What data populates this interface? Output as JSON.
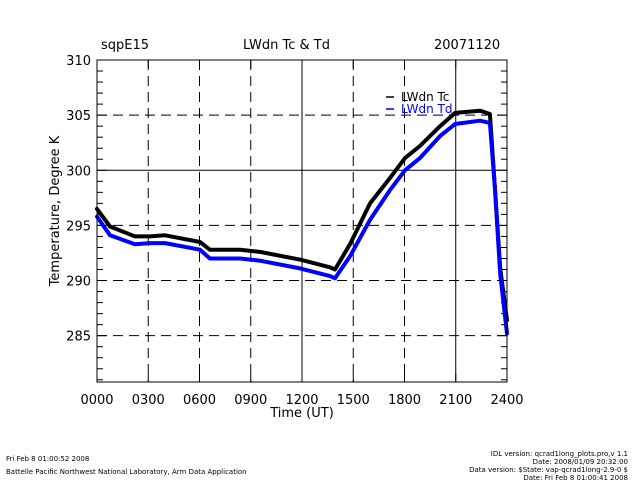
{
  "header": {
    "site": "sqpE15",
    "title": "LWdn Tc & Td",
    "date": "20071120"
  },
  "chart_data": {
    "type": "line",
    "title": "LWdn Tc & Td",
    "xlabel": "Time (UT)",
    "ylabel": "Temperature, Degree K",
    "xlim": [
      0,
      24
    ],
    "ylim": [
      280.8,
      310
    ],
    "x_ticks": [
      0,
      3,
      6,
      9,
      12,
      15,
      18,
      21,
      24
    ],
    "x_tick_labels": [
      "0000",
      "0300",
      "0600",
      "0900",
      "1200",
      "1500",
      "1800",
      "2100",
      "2400"
    ],
    "y_ticks": [
      285,
      290,
      295,
      300,
      305,
      310
    ],
    "y_tick_labels": [
      "285",
      "290",
      "295",
      "300",
      "305",
      "310"
    ],
    "grid": true,
    "legend": "top-right",
    "series": [
      {
        "name": "LWdn Tc",
        "color": "#000000",
        "x": [
          0,
          0.76,
          2.22,
          3.1,
          3.98,
          6.03,
          6.61,
          8.37,
          9.54,
          11.88,
          13.64,
          13.93,
          14.81,
          15.98,
          17.15,
          18.03,
          18.9,
          20.08,
          20.96,
          22.42,
          23.0,
          23.3,
          23.6,
          24
        ],
        "values": [
          296.5,
          294.9,
          294.0,
          294.0,
          294.1,
          293.5,
          292.8,
          292.8,
          292.6,
          291.9,
          291.2,
          291.0,
          293.3,
          297.0,
          299.3,
          301.1,
          302.2,
          304.0,
          305.2,
          305.4,
          305.1,
          298.3,
          291.1,
          286.4
        ]
      },
      {
        "name": "LWdn Td",
        "color": "#0000ff",
        "x": [
          0,
          0.76,
          2.22,
          3.1,
          3.98,
          6.03,
          6.61,
          8.37,
          9.54,
          11.88,
          13.64,
          13.93,
          14.81,
          15.98,
          17.15,
          18.03,
          18.9,
          20.08,
          20.96,
          22.42,
          23.0,
          23.3,
          23.6,
          24
        ],
        "values": [
          295.8,
          294.1,
          293.3,
          293.4,
          293.4,
          292.8,
          292.0,
          292.0,
          291.8,
          291.1,
          290.4,
          290.2,
          292.2,
          295.5,
          298.2,
          300.0,
          301.1,
          303.1,
          304.2,
          304.5,
          304.3,
          298.3,
          290.6,
          285.2
        ]
      }
    ]
  },
  "footer": {
    "left_line1": "Fri Feb  8 01:00:52 2008",
    "left_line2": "Battelle Pacific Northwest National Laboratory, Arm Data Application",
    "right_line1": "IDL version: qcrad1long_plots.pro,v 1.1",
    "right_line2": "Date: 2008/01/09 20:32:00",
    "right_line3": "Data version: $State: vap-qcrad1long-2.9-0 $",
    "right_line4": "Date: Fri Feb  8 01:00:41 2008"
  }
}
